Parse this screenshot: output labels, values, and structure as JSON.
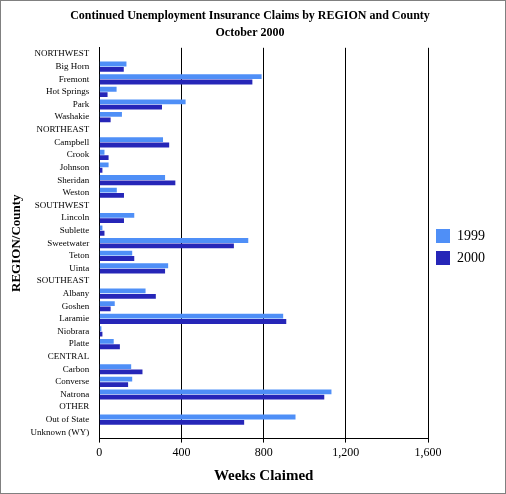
{
  "chart_data": {
    "type": "bar",
    "orientation": "horizontal",
    "title": "Continued Unemployment Insurance Claims by REGION and County",
    "subtitle": "October 2000",
    "x_label": "Weeks Claimed",
    "y_label": "REGION/County",
    "categories": [
      "NORTHWEST",
      "Big Horn",
      "Fremont",
      "Hot Springs",
      "Park",
      "Washakie",
      "NORTHEAST",
      "Campbell",
      "Crook",
      "Johnson",
      "Sheridan",
      "Weston",
      "SOUTHWEST",
      "Lincoln",
      "Sublette",
      "Sweetwater",
      "Teton",
      "Uinta",
      "SOUTHEAST",
      "Albany",
      "Goshen",
      "Laramie",
      "Niobrara",
      "Platte",
      "CENTRAL",
      "Carbon",
      "Converse",
      "Natrona",
      "OTHER",
      "Out of State",
      "Unknown (WY)"
    ],
    "series": [
      {
        "name": "1999",
        "color": "#4f8ff7",
        "values": [
          null,
          132,
          790,
          84,
          420,
          110,
          null,
          310,
          25,
          45,
          320,
          85,
          null,
          170,
          15,
          725,
          160,
          335,
          null,
          225,
          75,
          895,
          10,
          70,
          null,
          155,
          160,
          1130,
          null,
          955,
          0
        ]
      },
      {
        "name": "2000",
        "color": "#2626b8",
        "values": [
          null,
          119,
          745,
          40,
          305,
          55,
          null,
          340,
          45,
          15,
          370,
          120,
          null,
          120,
          25,
          655,
          170,
          320,
          null,
          275,
          55,
          910,
          15,
          100,
          null,
          210,
          140,
          1095,
          null,
          705,
          0
        ]
      }
    ],
    "xlim": [
      0,
      1600
    ],
    "xticks": [
      0,
      400,
      800,
      {
        "value": 1200,
        "label": "1,200"
      },
      {
        "value": 1600,
        "label": "1,600"
      }
    ],
    "grid": true,
    "legend": "right"
  }
}
